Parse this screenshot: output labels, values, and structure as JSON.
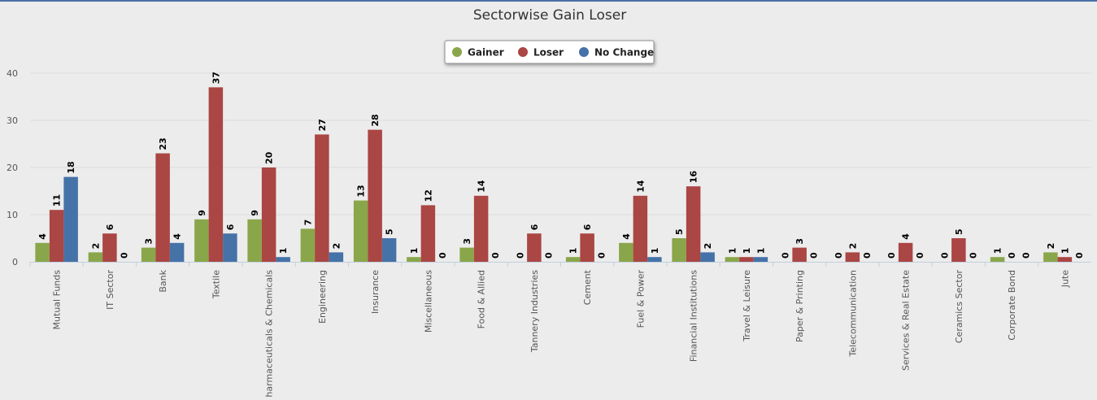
{
  "chart_data": {
    "type": "bar",
    "title": "Sectorwise Gain Loser",
    "xlabel": "",
    "ylabel": "",
    "ylim": [
      0,
      40
    ],
    "y_ticks": [
      0,
      10,
      20,
      30,
      40
    ],
    "grid": true,
    "legend_position": "top-center",
    "categories": [
      "Mutual Funds",
      "IT Sector",
      "Bank",
      "Textile",
      "Pharmaceuticals & Chemicals",
      "Engineering",
      "Insurance",
      "Miscellaneous",
      "Food & Allied",
      "Tannery Industries",
      "Cement",
      "Fuel & Power",
      "Financial Institutions",
      "Travel & Leisure",
      "Paper & Printing",
      "Telecommunication",
      "Services & Real Estate",
      "Ceramics Sector",
      "Corporate Bond",
      "Jute"
    ],
    "series": [
      {
        "name": "Gainer",
        "color": "#8aa64a",
        "values": [
          4,
          2,
          3,
          9,
          9,
          7,
          13,
          1,
          3,
          0,
          1,
          4,
          5,
          1,
          0,
          0,
          0,
          0,
          1,
          2
        ]
      },
      {
        "name": "Loser",
        "color": "#aa4643",
        "values": [
          11,
          6,
          23,
          37,
          20,
          27,
          28,
          12,
          14,
          6,
          6,
          14,
          16,
          1,
          3,
          2,
          4,
          5,
          0,
          1
        ]
      },
      {
        "name": "No Change",
        "color": "#4572a7",
        "values": [
          18,
          0,
          4,
          6,
          1,
          2,
          5,
          0,
          0,
          0,
          0,
          1,
          2,
          1,
          0,
          0,
          0,
          0,
          0,
          0
        ]
      }
    ]
  }
}
